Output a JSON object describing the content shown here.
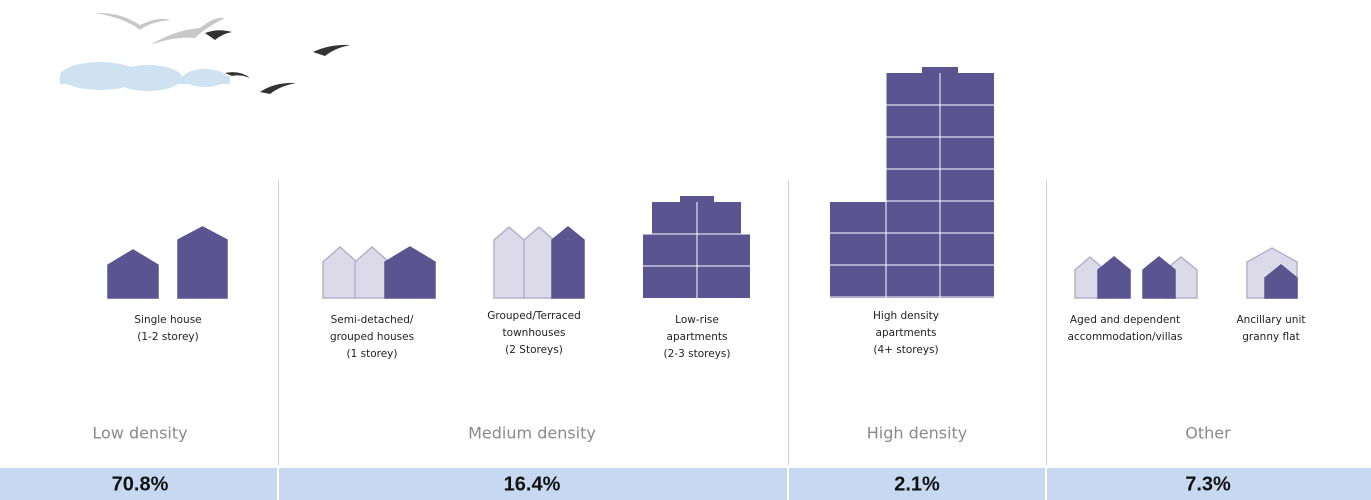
{
  "categories": [
    {
      "label": "Low density",
      "share": "70.8%",
      "dwellings": [
        {
          "lines": [
            "Single house",
            "(1-2 storey)"
          ]
        }
      ]
    },
    {
      "label": "Medium density",
      "share": "16.4%",
      "dwellings": [
        {
          "lines": [
            "Semi-detached/",
            "grouped houses",
            "(1 storey)"
          ]
        },
        {
          "lines": [
            "Grouped/Terraced",
            "townhouses",
            "(2 Storeys)"
          ]
        },
        {
          "lines": [
            "Low-rise",
            "apartments",
            "(2-3 storeys)"
          ]
        }
      ]
    },
    {
      "label": "High density",
      "share": "2.1%",
      "dwellings": [
        {
          "lines": [
            "High density",
            "apartments",
            "(4+ storeys)"
          ]
        }
      ]
    },
    {
      "label": "Other",
      "share": "7.3%",
      "dwellings": [
        {
          "lines": [
            "Aged and dependent",
            "accommodation/villas"
          ]
        },
        {
          "lines": [
            "Ancillary unit",
            "granny flat"
          ]
        }
      ]
    }
  ]
}
